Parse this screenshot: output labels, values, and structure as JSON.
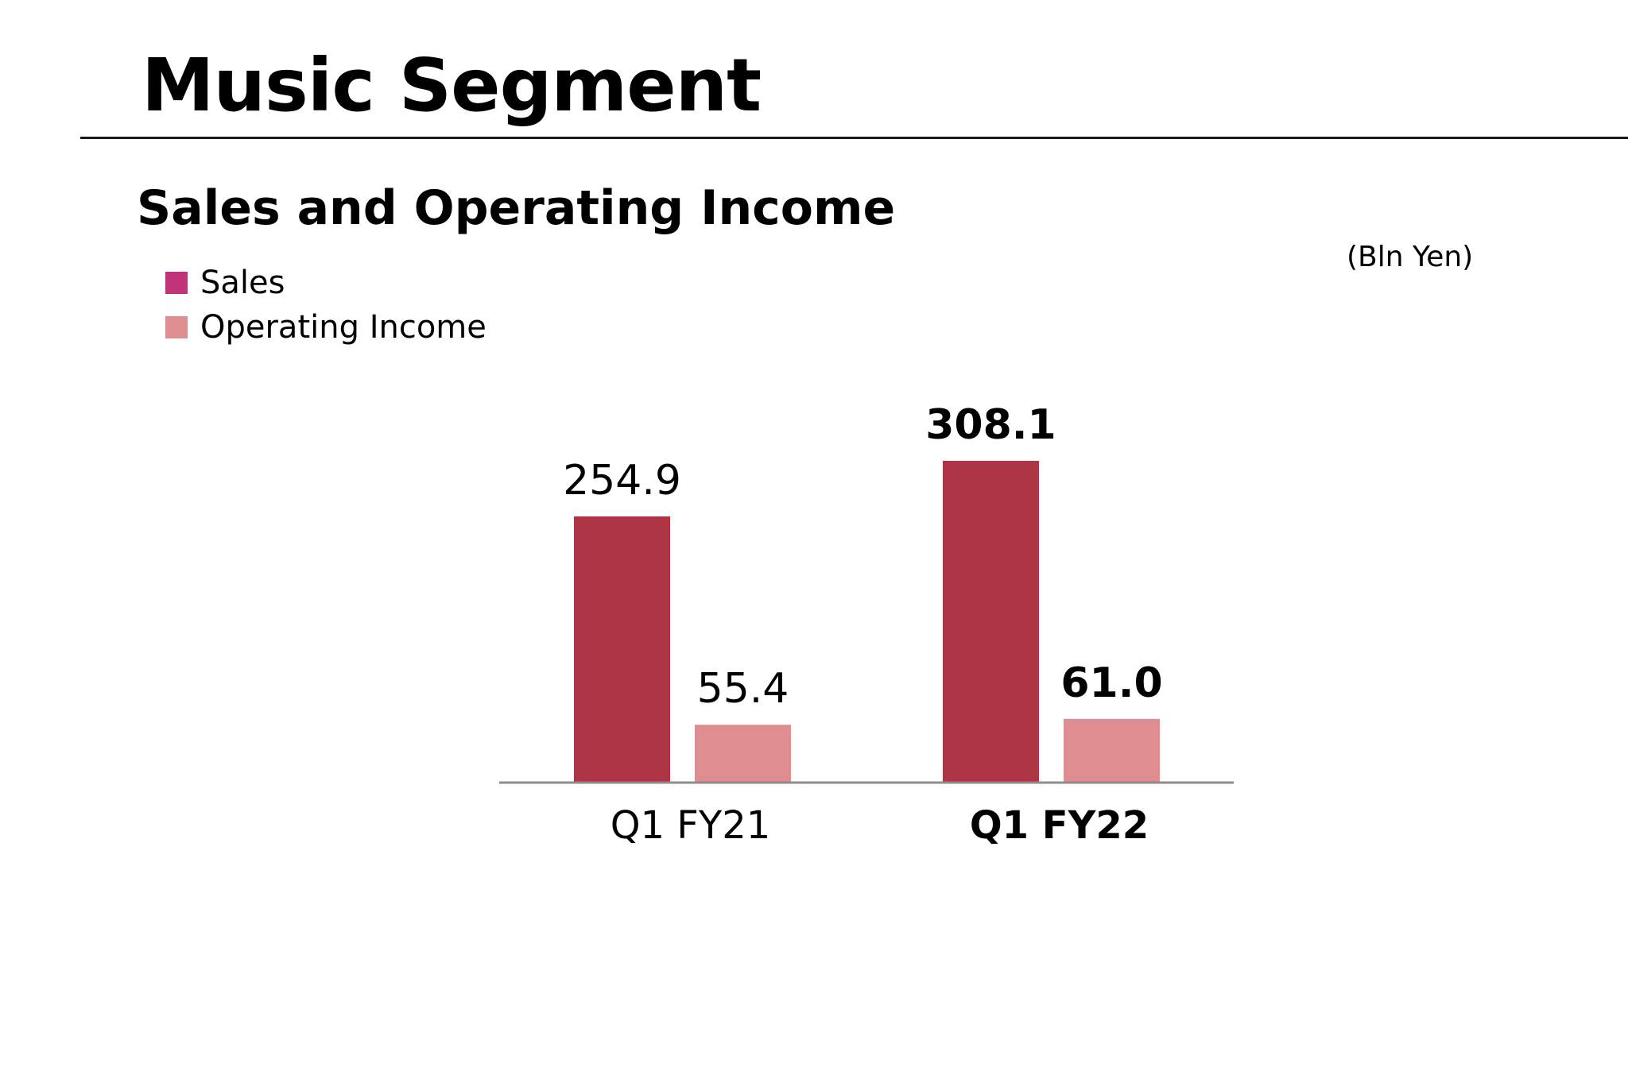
{
  "page": {
    "title": "Music Segment"
  },
  "chart_data": {
    "type": "bar",
    "title": "Sales and Operating Income",
    "unit": "(Bln Yen)",
    "categories": [
      "Q1 FY21",
      "Q1 FY22"
    ],
    "category_bold": [
      false,
      true
    ],
    "series": [
      {
        "name": "Sales",
        "values": [
          254.9,
          308.1
        ],
        "color": "#AE3546",
        "legend_color": "#C0357A"
      },
      {
        "name": "Operating Income",
        "values": [
          55.4,
          61.0
        ],
        "color": "#DE8E91",
        "legend_color": "#DE8E91"
      }
    ],
    "value_labels": [
      [
        "254.9",
        "308.1"
      ],
      [
        "55.4",
        "61.0"
      ]
    ],
    "ylim": [
      0,
      308.1
    ],
    "legend_position": "top-left",
    "grid": false,
    "xlabel": "",
    "ylabel": ""
  }
}
